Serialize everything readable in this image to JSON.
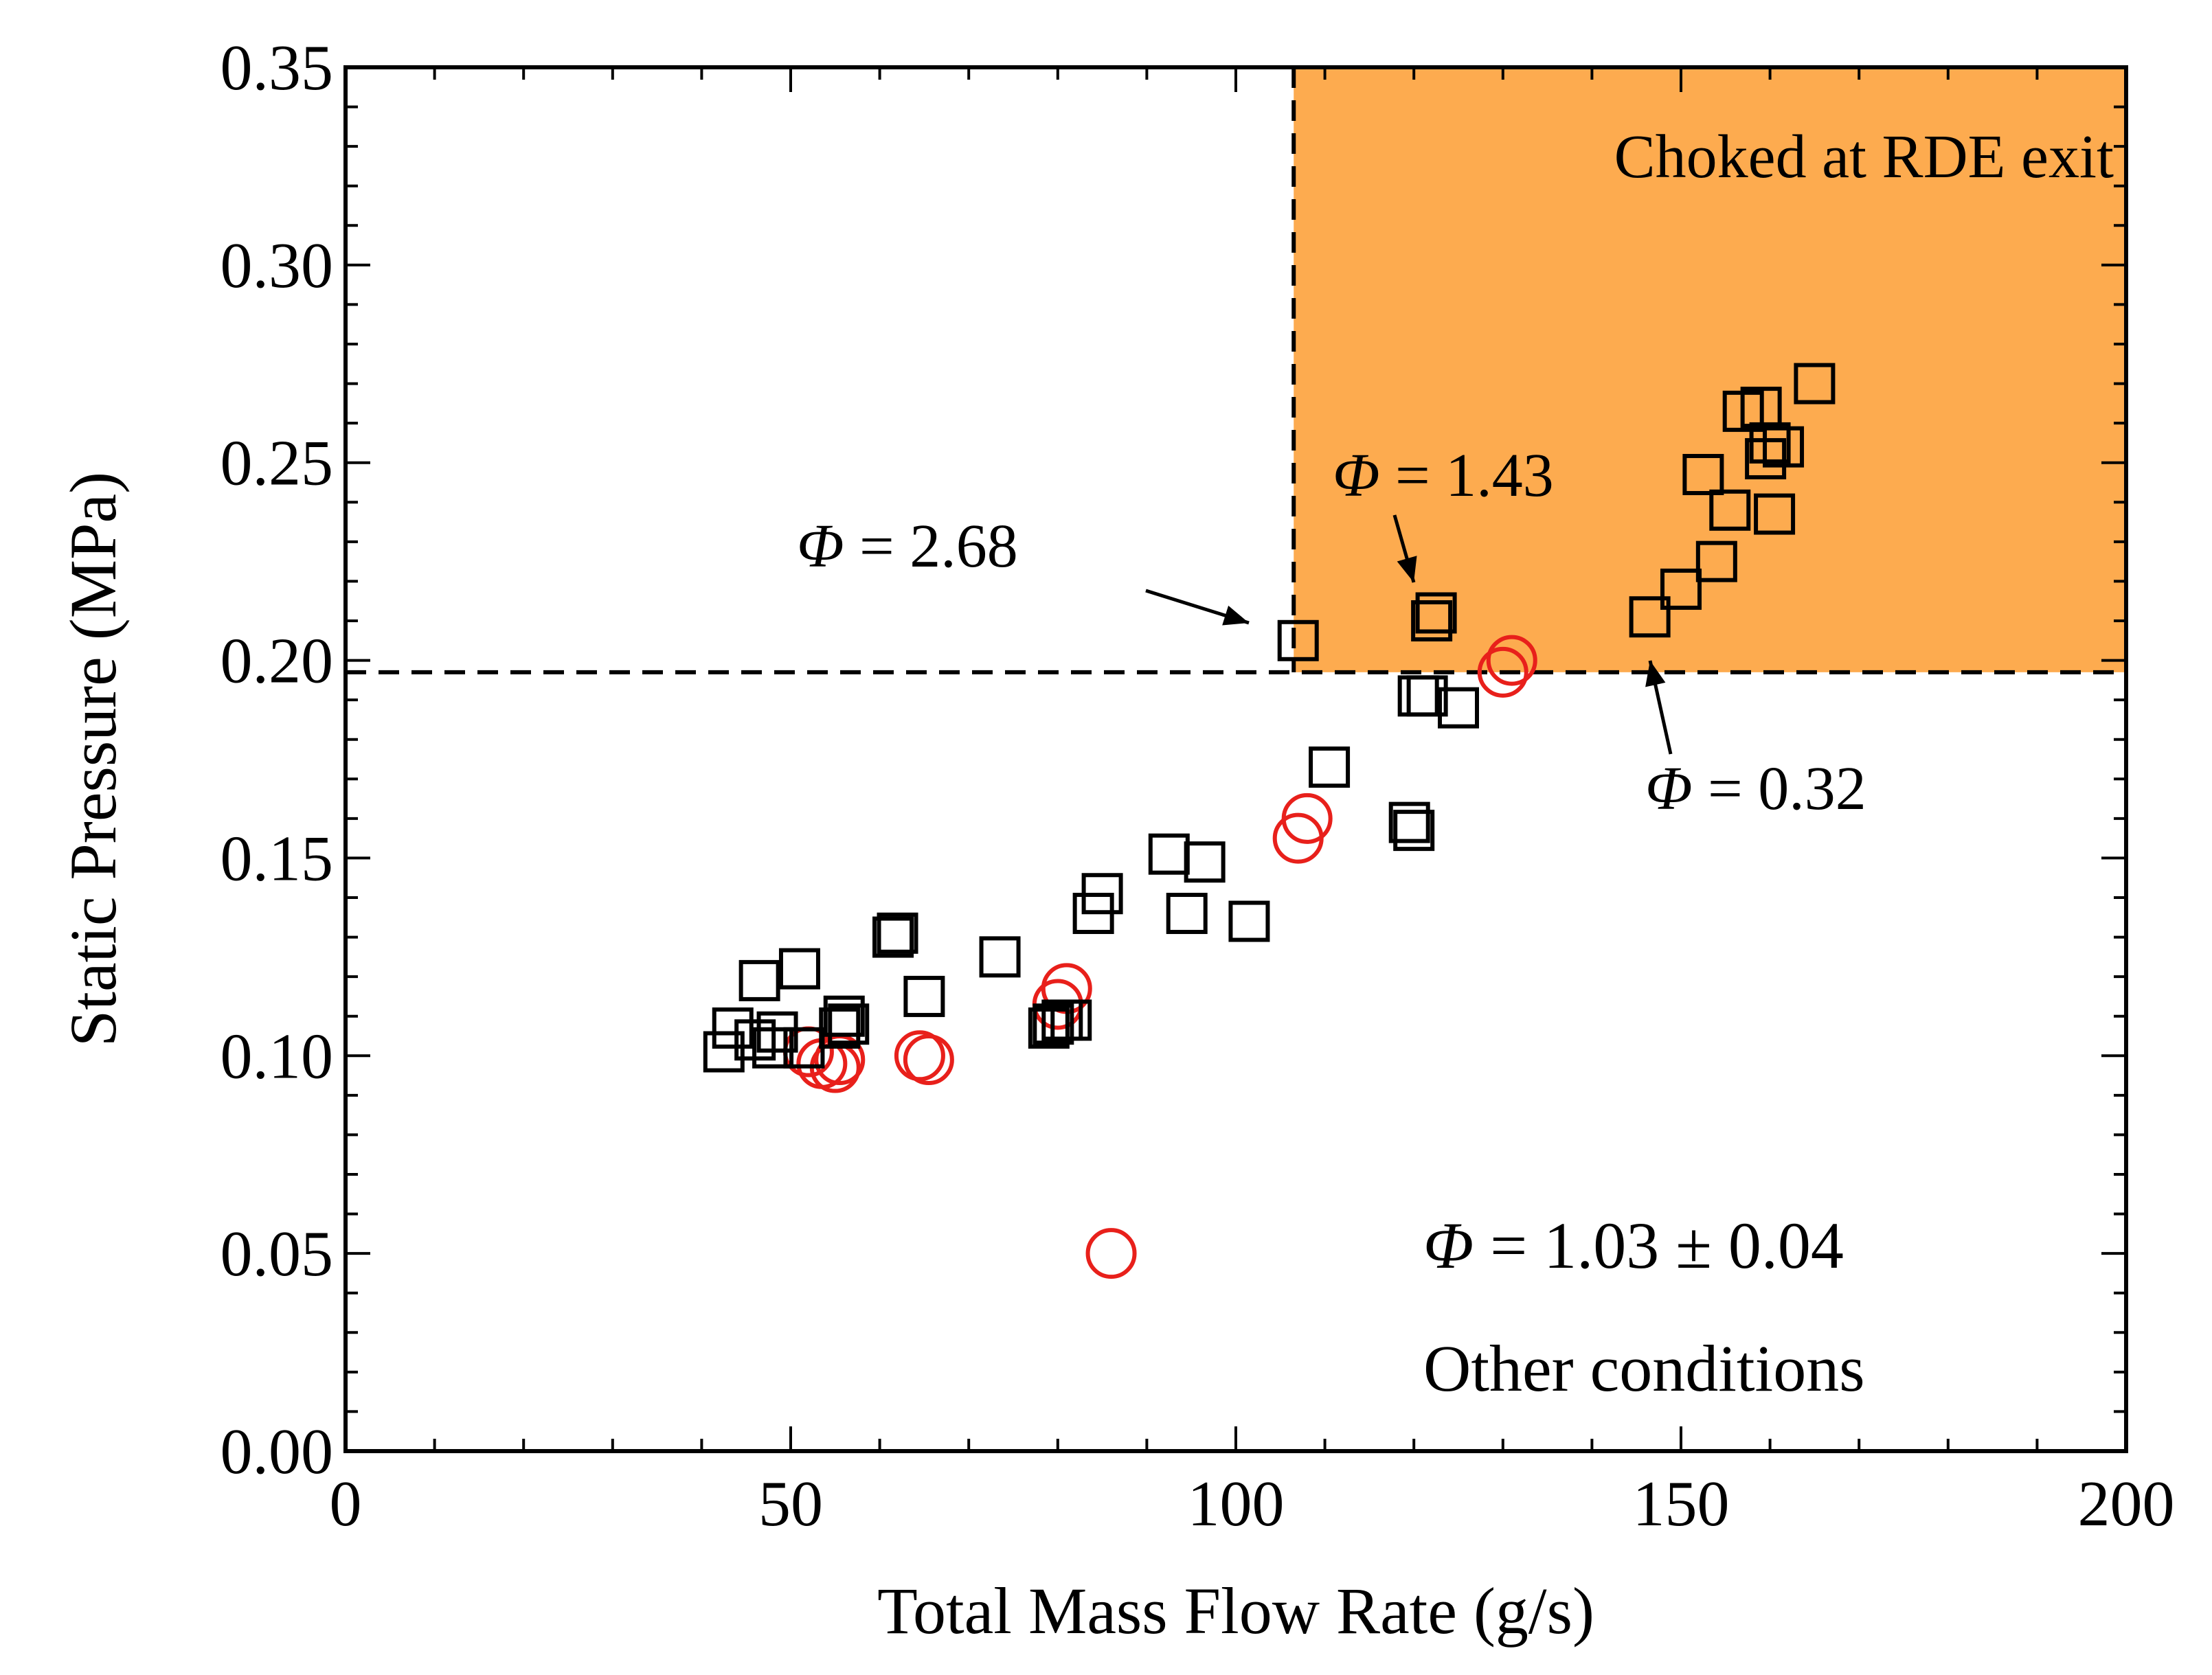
{
  "chart_data": {
    "type": "scatter",
    "title": "",
    "xlabel": "Total Mass Flow Rate (g/s)",
    "ylabel": "Static Pressure (MPa)",
    "xlim": [
      0,
      200
    ],
    "ylim": [
      0,
      0.35
    ],
    "x_ticks": [
      "0",
      "50",
      "100",
      "150",
      "200"
    ],
    "y_ticks": [
      "0.00",
      "0.05",
      "0.10",
      "0.15",
      "0.20",
      "0.25",
      "0.30",
      "0.35"
    ],
    "grid": false,
    "legend_position": "bottom-right",
    "choked_region": {
      "label": "Choked at RDE exit",
      "x_min": 106.5,
      "y_min": 0.197,
      "color": "#FDAB4F"
    },
    "series": [
      {
        "name": "Φ = 1.03 ± 0.04",
        "marker": "circle",
        "color": "#E8201B",
        "points": [
          [
            52,
            0.101
          ],
          [
            53.5,
            0.098
          ],
          [
            55,
            0.097
          ],
          [
            55.5,
            0.099
          ],
          [
            64.5,
            0.1
          ],
          [
            65.5,
            0.099
          ],
          [
            80,
            0.113
          ],
          [
            81,
            0.117
          ],
          [
            86,
            0.05
          ],
          [
            107,
            0.155
          ],
          [
            108,
            0.16
          ],
          [
            130,
            0.197
          ],
          [
            131,
            0.2
          ]
        ]
      },
      {
        "name": "Other conditions",
        "marker": "square",
        "color": "#000000",
        "points": [
          [
            42.5,
            0.101
          ],
          [
            43.5,
            0.107
          ],
          [
            46,
            0.104
          ],
          [
            46.5,
            0.119
          ],
          [
            48,
            0.102
          ],
          [
            48.5,
            0.106
          ],
          [
            51,
            0.122
          ],
          [
            51.5,
            0.102
          ],
          [
            55.5,
            0.107
          ],
          [
            56,
            0.11
          ],
          [
            56.5,
            0.108
          ],
          [
            61.5,
            0.13
          ],
          [
            62,
            0.131
          ],
          [
            65,
            0.115
          ],
          [
            73.5,
            0.125
          ],
          [
            79,
            0.107
          ],
          [
            79.5,
            0.108
          ],
          [
            80.5,
            0.109
          ],
          [
            81.5,
            0.109
          ],
          [
            84,
            0.136
          ],
          [
            85,
            0.141
          ],
          [
            92.5,
            0.151
          ],
          [
            94.5,
            0.136
          ],
          [
            96.5,
            0.149
          ],
          [
            101.5,
            0.134
          ],
          [
            107,
            0.205
          ],
          [
            110.5,
            0.173
          ],
          [
            119.5,
            0.159
          ],
          [
            120,
            0.157
          ],
          [
            120.5,
            0.191
          ],
          [
            121.5,
            0.191
          ],
          [
            122,
            0.21
          ],
          [
            122.5,
            0.212
          ],
          [
            125,
            0.188
          ],
          [
            146.5,
            0.211
          ],
          [
            150,
            0.218
          ],
          [
            152.5,
            0.247
          ],
          [
            154,
            0.225
          ],
          [
            155.5,
            0.238
          ],
          [
            157,
            0.263
          ],
          [
            159,
            0.264
          ],
          [
            159.5,
            0.251
          ],
          [
            160,
            0.255
          ],
          [
            160.5,
            0.237
          ],
          [
            161.5,
            0.254
          ],
          [
            165,
            0.27
          ]
        ]
      }
    ],
    "annotations": [
      {
        "prefix": "Φ",
        "text": " = 2.68",
        "point": [
          106.5,
          0.208
        ]
      },
      {
        "prefix": "Φ",
        "text": " = 1.43",
        "point": [
          120,
          0.218
        ]
      },
      {
        "prefix": "Φ",
        "text": " = 0.32",
        "point": [
          146.5,
          0.201
        ]
      }
    ]
  }
}
